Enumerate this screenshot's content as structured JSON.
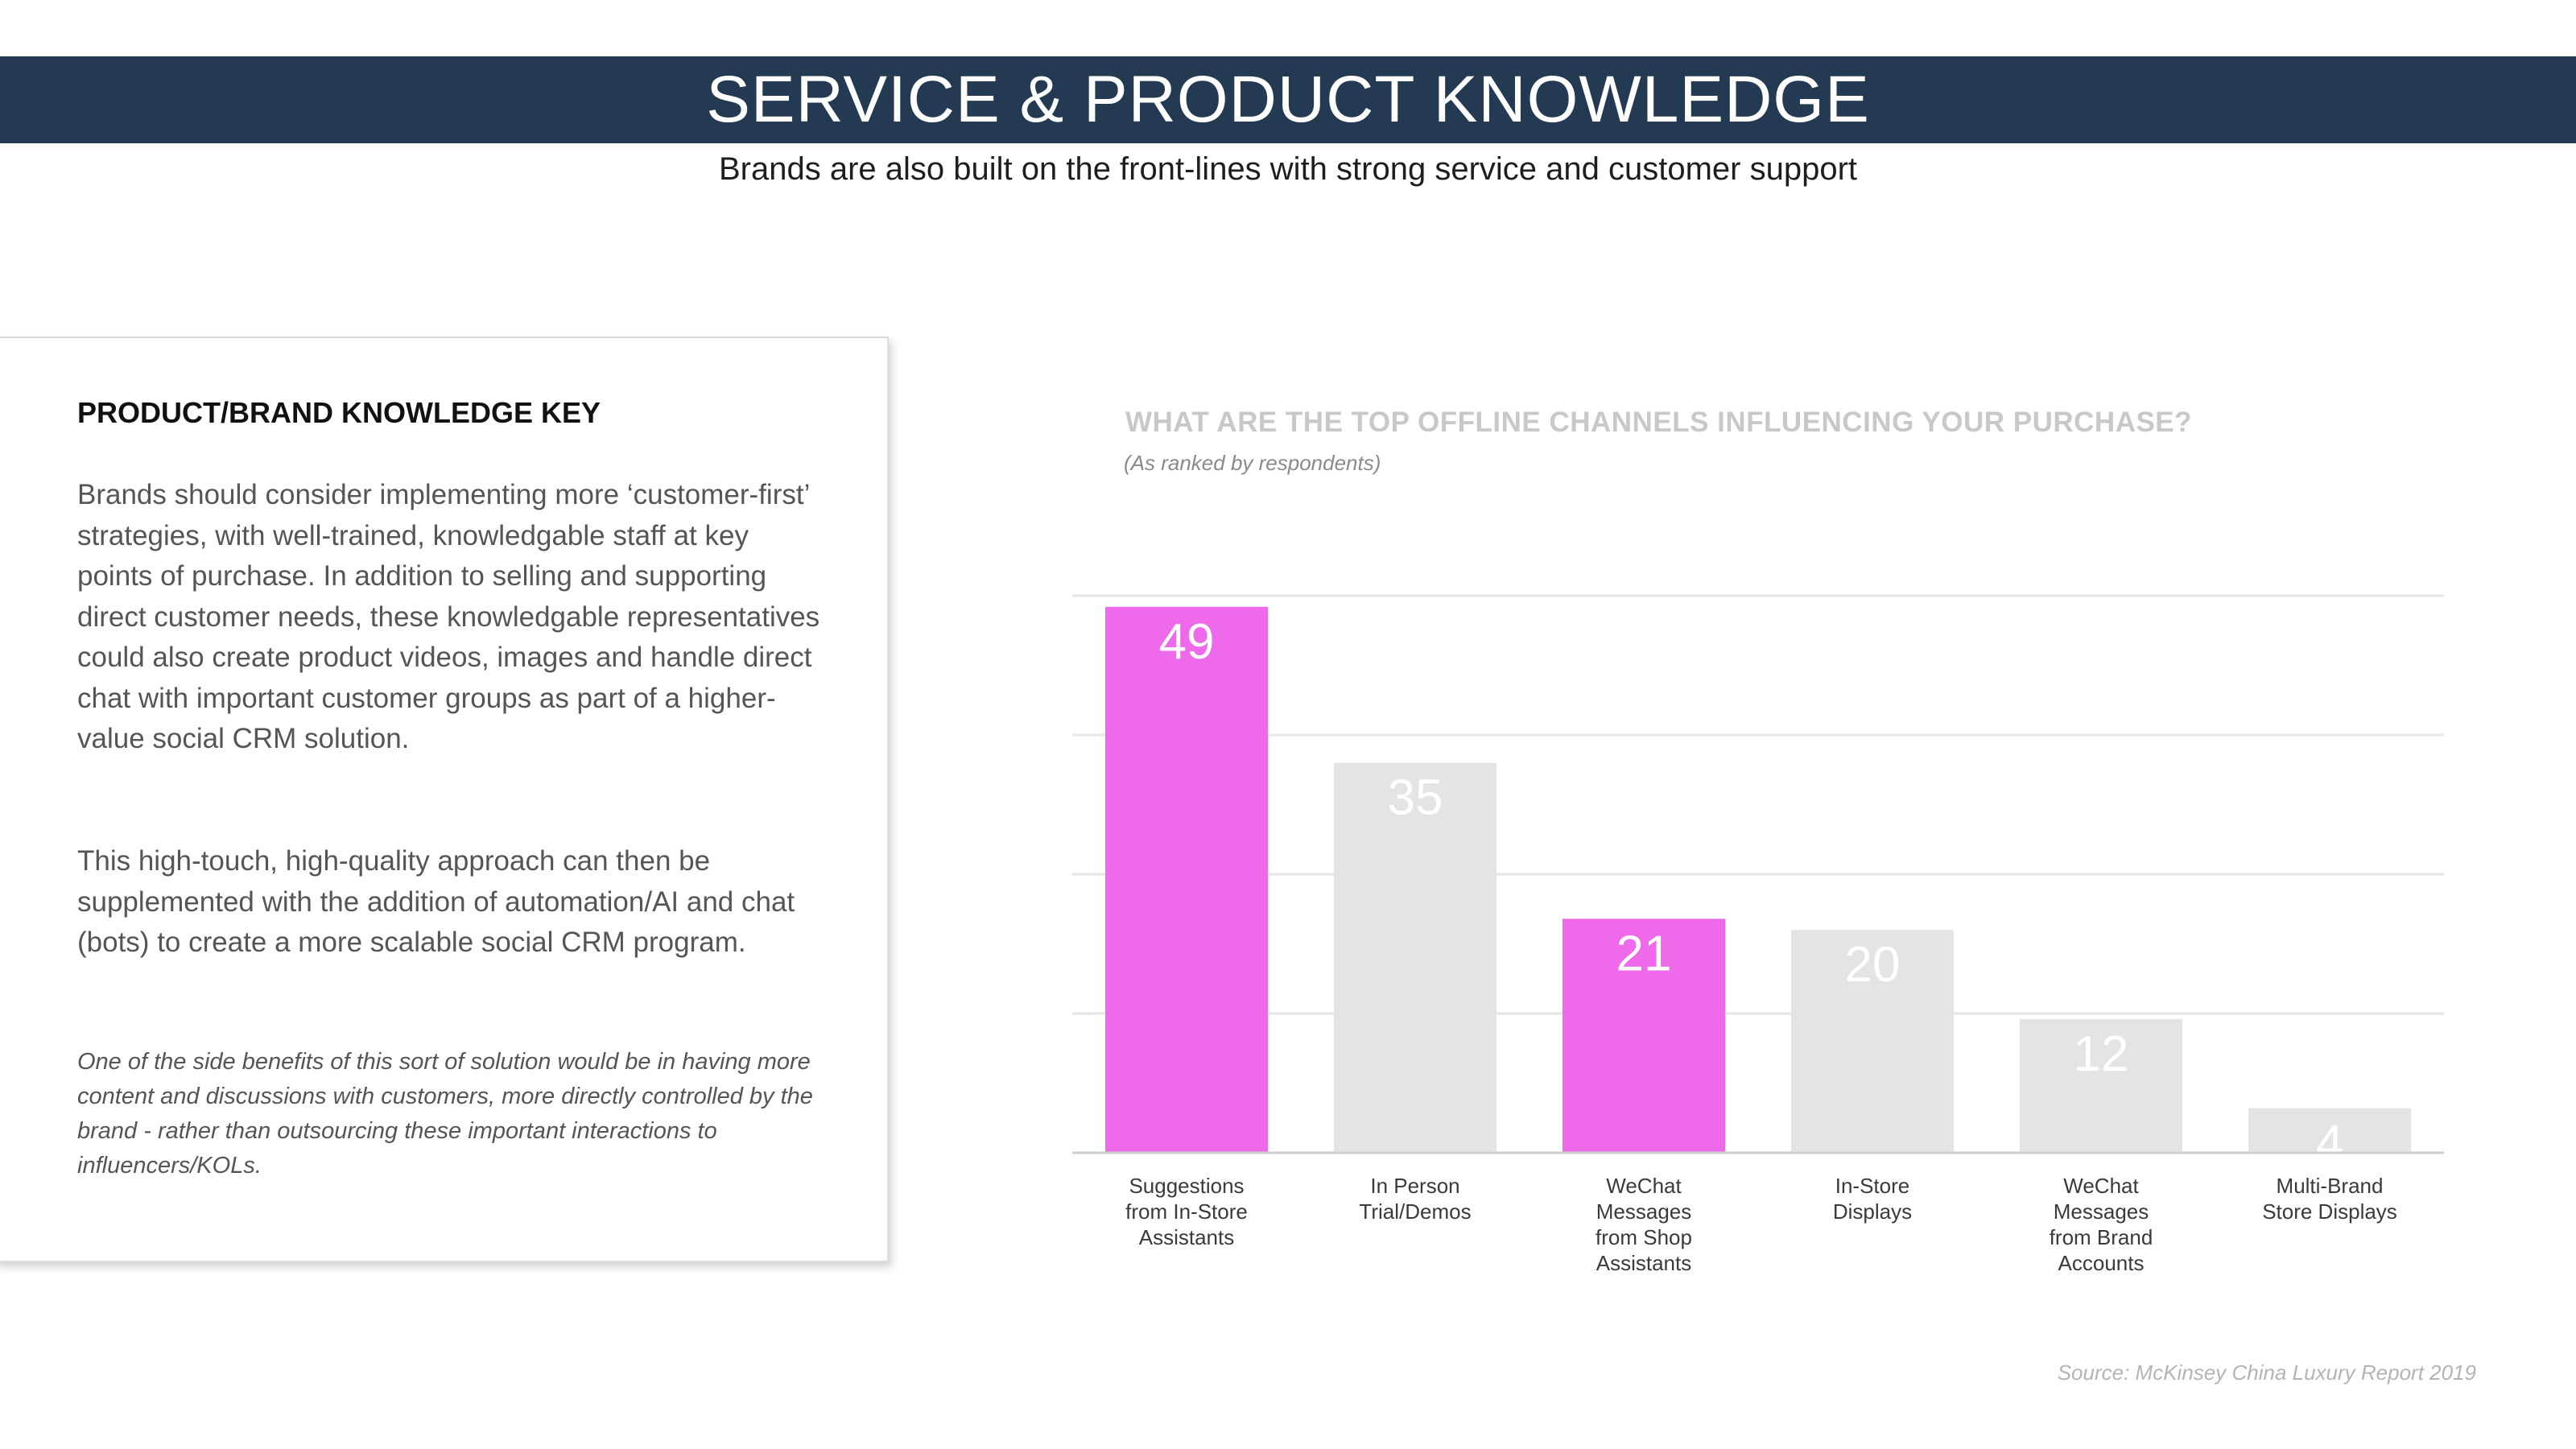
{
  "header": {
    "title": "SERVICE & PRODUCT KNOWLEDGE",
    "subtitle": "Brands are also built on the front-lines with strong service and customer support"
  },
  "card": {
    "heading": "PRODUCT/BRAND KNOWLEDGE KEY",
    "paragraph1": "Brands should consider implementing more ‘customer-first’ strategies, with well-trained, knowledgable staff at key points of purchase. In addition to selling and supporting direct customer needs, these knowledgable representatives could also create product videos, images and handle direct chat with important customer groups as part of a higher-value social CRM solution.",
    "paragraph2": "This high-touch, high-quality approach can then be supplemented with the addition of automation/AI and chat (bots) to create a more scalable social CRM program.",
    "note": "One of the side benefits of this sort of solution would be in having more content and discussions with customers, more directly controlled by the brand - rather than outsourcing these important interactions to influencers/KOLs."
  },
  "chart_data": {
    "type": "bar",
    "title": "WHAT ARE THE TOP OFFLINE CHANNELS INFLUENCING YOUR PURCHASE?",
    "subtitle": "(As ranked by respondents)",
    "categories": [
      "Suggestions from In-Store Assistants",
      "In Person Trial/Demos",
      "WeChat Messages from Shop Assistants",
      "In-Store Displays",
      "WeChat Messages from Brand Accounts",
      "Multi-Brand Store Displays"
    ],
    "category_label_lines": [
      [
        "Suggestions",
        "from In-Store",
        "Assistants"
      ],
      [
        "In Person",
        "Trial/Demos"
      ],
      [
        "WeChat",
        "Messages",
        "from Shop",
        "Assistants"
      ],
      [
        "In-Store",
        "Displays"
      ],
      [
        "WeChat",
        "Messages",
        "from Brand",
        "Accounts"
      ],
      [
        "Multi-Brand",
        "Store Displays"
      ]
    ],
    "values": [
      49,
      35,
      21,
      20,
      12,
      4
    ],
    "highlighted": [
      true,
      false,
      true,
      false,
      false,
      false
    ],
    "ylim": [
      0,
      50
    ],
    "gridlines": [
      0,
      12.5,
      25,
      37.5,
      50
    ],
    "grid": true,
    "xlabel": "",
    "ylabel": "",
    "colors": {
      "highlight": "#ee6aea",
      "base": "#e4e4e4",
      "grid": "#e6e6e6",
      "axis": "#cfcfcf"
    }
  },
  "footer": {
    "source": "Source: McKinsey China Luxury Report 2019"
  }
}
